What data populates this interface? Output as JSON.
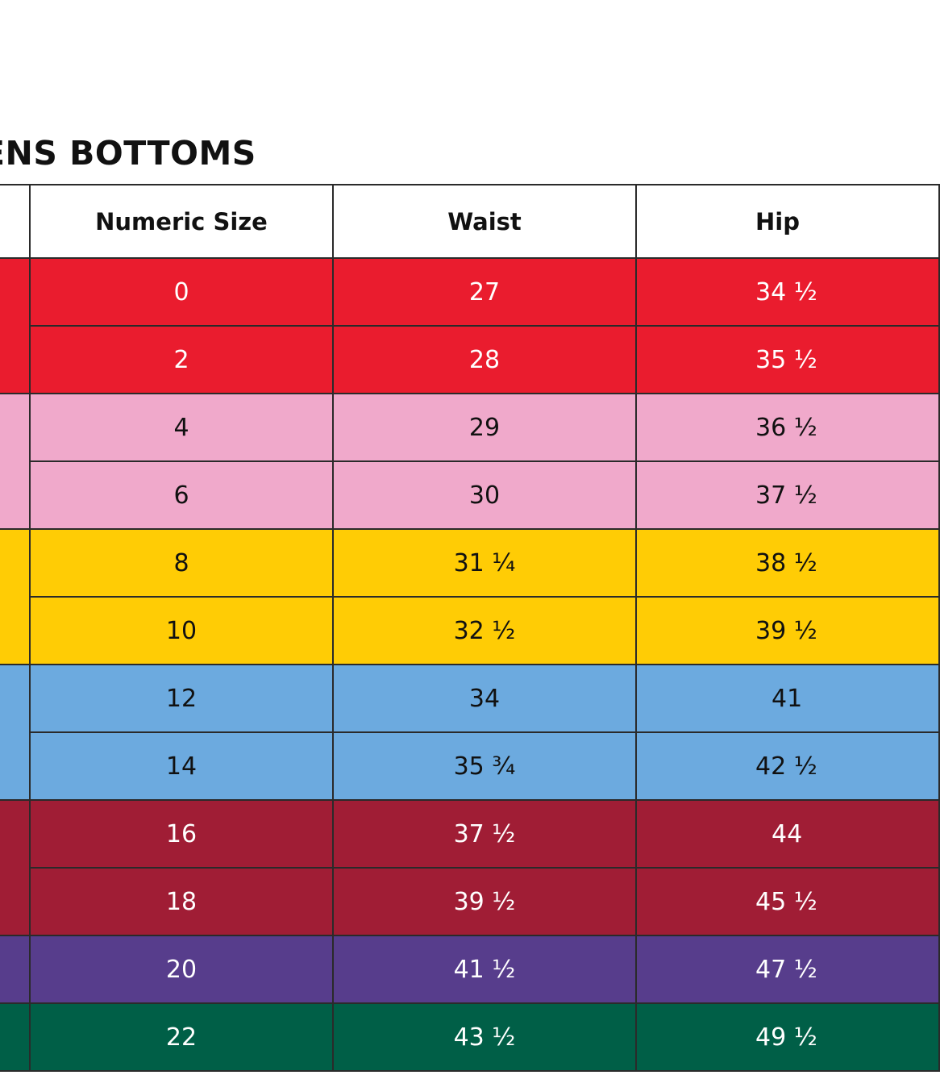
{
  "title": "ENS BOTTOMS",
  "columns": {
    "numeric_size": "Numeric Size",
    "waist": "Waist",
    "hip": "Hip"
  },
  "rows": [
    {
      "numeric": "0",
      "waist": "27",
      "hip": "34 ½"
    },
    {
      "numeric": "2",
      "waist": "28",
      "hip": "35 ½"
    },
    {
      "numeric": "4",
      "waist": "29",
      "hip": "36 ½"
    },
    {
      "numeric": "6",
      "waist": "30",
      "hip": "37 ½"
    },
    {
      "numeric": "8",
      "waist": "31 ¼",
      "hip": "38 ½"
    },
    {
      "numeric": "10",
      "waist": "32 ½",
      "hip": "39 ½"
    },
    {
      "numeric": "12",
      "waist": "34",
      "hip": "41"
    },
    {
      "numeric": "14",
      "waist": "35 ¾",
      "hip": "42 ½"
    },
    {
      "numeric": "16",
      "waist": "37 ½",
      "hip": "44"
    },
    {
      "numeric": "18",
      "waist": "39 ½",
      "hip": "45 ½"
    },
    {
      "numeric": "20",
      "waist": "41 ½",
      "hip": "47 ½"
    },
    {
      "numeric": "22",
      "waist": "43 ½",
      "hip": "49 ½"
    }
  ],
  "group_colors": [
    "#ea1c2e",
    "#f0a9cb",
    "#ffcc05",
    "#6caadf",
    "#a01d35",
    "#573d8c",
    "#005f47"
  ]
}
